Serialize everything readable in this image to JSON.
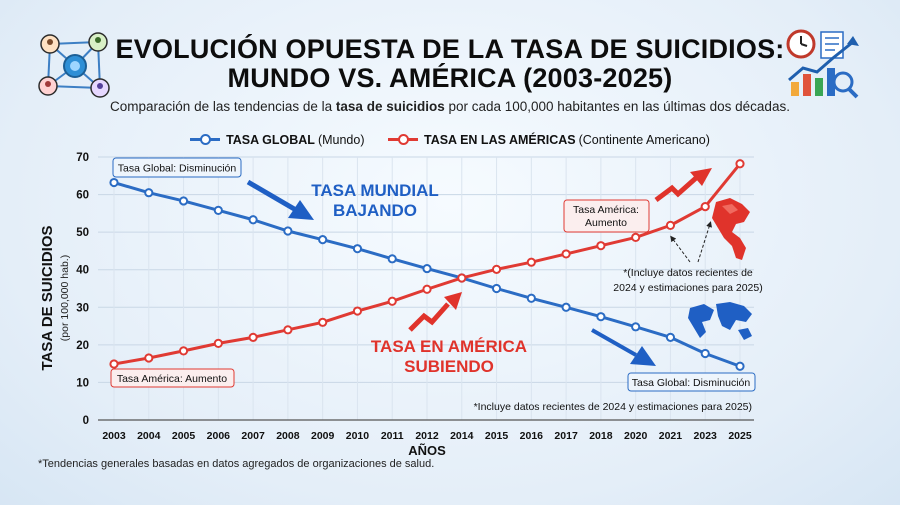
{
  "header": {
    "title_line1": "EVOLUCIÓN OPUESTA DE LA TASA DE SUICIDIOS:",
    "title_line2": "MUNDO VS. AMÉRICA (2003-2025)",
    "subtitle_pre": "Comparación de las tendencias de la ",
    "subtitle_bold": "tasa de suicidios",
    "subtitle_post": " por cada 100,000 habitantes en las últimas dos décadas.",
    "left_icon": "network-people-icon",
    "right_icon": "clock-chart-growth-icon"
  },
  "legend": {
    "global_name": "TASA GLOBAL",
    "global_desc": "(Mundo)",
    "america_name": "TASA EN LAS AMÉRICAS",
    "america_desc": "(Continente Americano)"
  },
  "chart_data": {
    "type": "line",
    "xlabel": "AÑOS",
    "ylabel": "TASA DE SUICIDIOS",
    "ylabel_sub": "(por 100,000 hab.)",
    "ylim": [
      0,
      70
    ],
    "yticks": [
      0,
      10,
      20,
      30,
      40,
      50,
      60,
      70
    ],
    "grid": true,
    "legend_position": "top-center",
    "x": [
      "2003",
      "2004",
      "2005",
      "2006",
      "2007",
      "2008",
      "2009",
      "2010",
      "2011",
      "2012",
      "2014",
      "2015",
      "2016",
      "2017",
      "2018",
      "2020",
      "2021",
      "2023",
      "2025"
    ],
    "series": [
      {
        "name": "TASA GLOBAL",
        "color": "#2b6cc4",
        "values": [
          63.2,
          60.5,
          58.3,
          55.8,
          53.3,
          50.3,
          48.0,
          45.6,
          42.9,
          40.3,
          37.8,
          35.0,
          32.4,
          30.0,
          27.5,
          24.8,
          22.0,
          17.7,
          14.3
        ]
      },
      {
        "name": "TASA EN LAS AMÉRICAS",
        "color": "#e03a33",
        "values": [
          14.9,
          16.5,
          18.4,
          20.4,
          22.0,
          24.0,
          26.0,
          29.0,
          31.6,
          34.8,
          37.8,
          40.1,
          42.0,
          44.2,
          46.4,
          48.6,
          51.8,
          56.8,
          68.2
        ]
      }
    ],
    "annotations": {
      "global_start_box": "Tasa Global: Disminución",
      "global_end_box": "Tasa Global: Disminución",
      "america_start_box": "Tasa América: Aumento",
      "america_end_box_l1": "Tasa América:",
      "america_end_box_l2": "Aumento",
      "global_big_l1": "TASA MUNDIAL",
      "global_big_l2": "BAJANDO",
      "america_big_l1": "TASA EN AMÉRICA",
      "america_big_l2": "SUBIENDO",
      "recent_note_l1": "*(Incluye datos recientes de",
      "recent_note_l2": "2024 y estimaciones para 2025)",
      "recent_note_bottom": "*Incluye datos recientes de 2024 y estimaciones para 2025)"
    }
  },
  "footnote": "*Tendencias generales basadas en datos agregados de organizaciones de salud."
}
